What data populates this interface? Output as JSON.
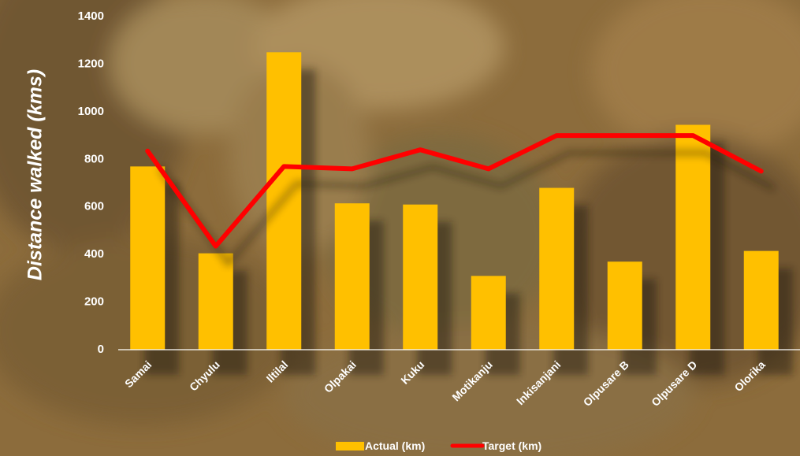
{
  "colors": {
    "bar": "#FFC000",
    "line": "#FF0000",
    "text": "#FFFFFF",
    "background": "#8A6A3A"
  },
  "chart_data": {
    "type": "bar",
    "ylabel": "Distance walked (kms)",
    "xlabel": "",
    "title": "",
    "ylim": [
      0,
      1400
    ],
    "yticks": [
      0,
      200,
      400,
      600,
      800,
      1000,
      1200,
      1400
    ],
    "grid": false,
    "legend_position": "bottom",
    "categories": [
      "Samai",
      "Chyulu",
      "Iltilal",
      "Olpakai",
      "Kuku",
      "Motikanju",
      "Inkisanjani",
      "Olpusare B",
      "Olpusare D",
      "Olorika"
    ],
    "series": [
      {
        "name": "Actual (km)",
        "type": "bar",
        "values": [
          770,
          405,
          1250,
          615,
          610,
          310,
          680,
          370,
          945,
          415
        ]
      },
      {
        "name": "Target (km)",
        "type": "line",
        "values": [
          835,
          435,
          770,
          760,
          840,
          760,
          900,
          900,
          900,
          750
        ]
      }
    ]
  }
}
